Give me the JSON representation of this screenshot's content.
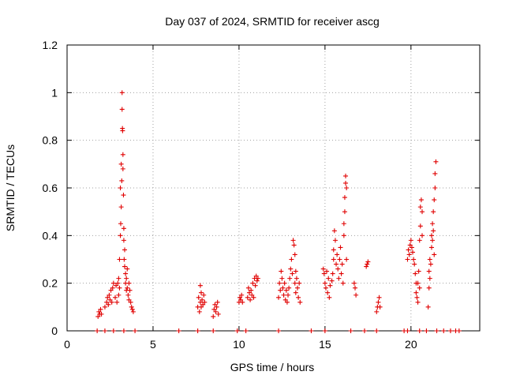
{
  "chart_data": {
    "type": "scatter",
    "title": "Day 037 of 2024, SRMTID for receiver ascg",
    "xlabel": "GPS time / hours",
    "ylabel": "SRMTID / TECUs",
    "xlim": [
      0,
      24
    ],
    "ylim": [
      0,
      1.2
    ],
    "xticks": [
      0,
      5,
      10,
      15,
      20
    ],
    "xtick_labels": [
      "0",
      "5",
      "10",
      "15",
      "20"
    ],
    "yticks": [
      0,
      0.2,
      0.4,
      0.6,
      0.8,
      1.0,
      1.2
    ],
    "ytick_labels": [
      "0",
      "0.2",
      "0.4",
      "0.6",
      "0.8",
      "1",
      "1.2"
    ],
    "grid": true,
    "marker": "+",
    "color": "#e00000",
    "series": [
      {
        "name": "SRMTID",
        "points": [
          [
            1.8,
            0.06
          ],
          [
            1.85,
            0.08
          ],
          [
            1.9,
            0.07
          ],
          [
            1.95,
            0.09
          ],
          [
            2.0,
            0.07
          ],
          [
            2.2,
            0.1
          ],
          [
            2.3,
            0.12
          ],
          [
            2.35,
            0.14
          ],
          [
            2.4,
            0.11
          ],
          [
            2.45,
            0.15
          ],
          [
            2.5,
            0.13
          ],
          [
            2.55,
            0.17
          ],
          [
            2.6,
            0.12
          ],
          [
            2.65,
            0.18
          ],
          [
            2.7,
            0.2
          ],
          [
            2.8,
            0.14
          ],
          [
            2.85,
            0.19
          ],
          [
            2.9,
            0.12
          ],
          [
            2.95,
            0.2
          ],
          [
            3.0,
            0.15
          ],
          [
            3.0,
            0.22
          ],
          [
            3.05,
            0.3
          ],
          [
            3.05,
            0.18
          ],
          [
            3.1,
            0.4
          ],
          [
            3.1,
            0.6
          ],
          [
            3.12,
            0.45
          ],
          [
            3.15,
            0.52
          ],
          [
            3.15,
            0.7
          ],
          [
            3.18,
            0.63
          ],
          [
            3.2,
            0.93
          ],
          [
            3.2,
            1.0
          ],
          [
            3.22,
            0.85
          ],
          [
            3.23,
            0.84
          ],
          [
            3.25,
            0.74
          ],
          [
            3.25,
            0.68
          ],
          [
            3.28,
            0.57
          ],
          [
            3.3,
            0.43
          ],
          [
            3.3,
            0.38
          ],
          [
            3.32,
            0.3
          ],
          [
            3.35,
            0.34
          ],
          [
            3.35,
            0.27
          ],
          [
            3.4,
            0.24
          ],
          [
            3.4,
            0.2
          ],
          [
            3.45,
            0.22
          ],
          [
            3.45,
            0.17
          ],
          [
            3.5,
            0.26
          ],
          [
            3.5,
            0.18
          ],
          [
            3.55,
            0.15
          ],
          [
            3.6,
            0.2
          ],
          [
            3.6,
            0.13
          ],
          [
            3.65,
            0.17
          ],
          [
            3.7,
            0.12
          ],
          [
            3.75,
            0.1
          ],
          [
            3.8,
            0.09
          ],
          [
            3.85,
            0.08
          ],
          [
            7.6,
            0.1
          ],
          [
            7.65,
            0.14
          ],
          [
            7.7,
            0.08
          ],
          [
            7.75,
            0.19
          ],
          [
            7.75,
            0.12
          ],
          [
            7.8,
            0.16
          ],
          [
            7.8,
            0.1
          ],
          [
            7.85,
            0.13
          ],
          [
            7.9,
            0.11
          ],
          [
            7.95,
            0.15
          ],
          [
            8.0,
            0.12
          ],
          [
            8.5,
            0.06
          ],
          [
            8.55,
            0.09
          ],
          [
            8.6,
            0.11
          ],
          [
            8.65,
            0.08
          ],
          [
            8.7,
            0.1
          ],
          [
            8.75,
            0.12
          ],
          [
            8.8,
            0.07
          ],
          [
            10.0,
            0.12
          ],
          [
            10.05,
            0.14
          ],
          [
            10.1,
            0.13
          ],
          [
            10.15,
            0.15
          ],
          [
            10.2,
            0.12
          ],
          [
            10.5,
            0.14
          ],
          [
            10.55,
            0.18
          ],
          [
            10.6,
            0.16
          ],
          [
            10.65,
            0.13
          ],
          [
            10.7,
            0.17
          ],
          [
            10.75,
            0.15
          ],
          [
            10.8,
            0.2
          ],
          [
            10.85,
            0.14
          ],
          [
            10.9,
            0.22
          ],
          [
            10.95,
            0.19
          ],
          [
            11.0,
            0.23
          ],
          [
            11.05,
            0.21
          ],
          [
            11.1,
            0.22
          ],
          [
            12.3,
            0.14
          ],
          [
            12.35,
            0.2
          ],
          [
            12.4,
            0.17
          ],
          [
            12.45,
            0.25
          ],
          [
            12.5,
            0.22
          ],
          [
            12.55,
            0.18
          ],
          [
            12.6,
            0.15
          ],
          [
            12.65,
            0.2
          ],
          [
            12.7,
            0.13
          ],
          [
            12.75,
            0.17
          ],
          [
            12.8,
            0.12
          ],
          [
            12.85,
            0.15
          ],
          [
            12.9,
            0.18
          ],
          [
            12.95,
            0.22
          ],
          [
            13.0,
            0.26
          ],
          [
            13.05,
            0.3
          ],
          [
            13.1,
            0.24
          ],
          [
            13.15,
            0.38
          ],
          [
            13.2,
            0.36
          ],
          [
            13.25,
            0.32
          ],
          [
            13.25,
            0.2
          ],
          [
            13.3,
            0.25
          ],
          [
            13.3,
            0.16
          ],
          [
            13.35,
            0.22
          ],
          [
            13.4,
            0.18
          ],
          [
            13.45,
            0.14
          ],
          [
            13.5,
            0.2
          ],
          [
            13.55,
            0.12
          ],
          [
            14.9,
            0.26
          ],
          [
            14.95,
            0.24
          ],
          [
            15.0,
            0.2
          ],
          [
            15.05,
            0.18
          ],
          [
            15.1,
            0.25
          ],
          [
            15.15,
            0.16
          ],
          [
            15.2,
            0.22
          ],
          [
            15.25,
            0.14
          ],
          [
            15.3,
            0.19
          ],
          [
            15.4,
            0.21
          ],
          [
            15.45,
            0.24
          ],
          [
            15.5,
            0.34
          ],
          [
            15.5,
            0.3
          ],
          [
            15.55,
            0.42
          ],
          [
            15.6,
            0.38
          ],
          [
            15.65,
            0.28
          ],
          [
            15.7,
            0.32
          ],
          [
            15.75,
            0.26
          ],
          [
            15.8,
            0.22
          ],
          [
            15.85,
            0.3
          ],
          [
            15.9,
            0.35
          ],
          [
            15.95,
            0.24
          ],
          [
            16.0,
            0.28
          ],
          [
            16.05,
            0.2
          ],
          [
            16.1,
            0.45
          ],
          [
            16.1,
            0.4
          ],
          [
            16.15,
            0.5
          ],
          [
            16.15,
            0.56
          ],
          [
            16.2,
            0.62
          ],
          [
            16.2,
            0.65
          ],
          [
            16.25,
            0.6
          ],
          [
            16.25,
            0.3
          ],
          [
            16.7,
            0.2
          ],
          [
            16.75,
            0.18
          ],
          [
            16.8,
            0.15
          ],
          [
            17.4,
            0.27
          ],
          [
            17.45,
            0.28
          ],
          [
            17.5,
            0.29
          ],
          [
            18.0,
            0.08
          ],
          [
            18.05,
            0.1
          ],
          [
            18.1,
            0.12
          ],
          [
            18.15,
            0.14
          ],
          [
            18.2,
            0.1
          ],
          [
            19.8,
            0.3
          ],
          [
            19.85,
            0.34
          ],
          [
            19.9,
            0.32
          ],
          [
            19.95,
            0.36
          ],
          [
            20.0,
            0.38
          ],
          [
            20.05,
            0.35
          ],
          [
            20.1,
            0.33
          ],
          [
            20.15,
            0.3
          ],
          [
            20.2,
            0.28
          ],
          [
            20.25,
            0.24
          ],
          [
            20.3,
            0.2
          ],
          [
            20.3,
            0.16
          ],
          [
            20.35,
            0.14
          ],
          [
            20.4,
            0.2
          ],
          [
            20.4,
            0.12
          ],
          [
            20.45,
            0.25
          ],
          [
            20.5,
            0.18
          ],
          [
            20.5,
            0.38
          ],
          [
            20.55,
            0.44
          ],
          [
            20.55,
            0.52
          ],
          [
            20.6,
            0.55
          ],
          [
            20.65,
            0.5
          ],
          [
            20.65,
            0.4
          ],
          [
            21.0,
            0.1
          ],
          [
            21.05,
            0.18
          ],
          [
            21.05,
            0.25
          ],
          [
            21.1,
            0.22
          ],
          [
            21.1,
            0.3
          ],
          [
            21.15,
            0.28
          ],
          [
            21.2,
            0.35
          ],
          [
            21.2,
            0.4
          ],
          [
            21.25,
            0.45
          ],
          [
            21.25,
            0.38
          ],
          [
            21.3,
            0.42
          ],
          [
            21.3,
            0.5
          ],
          [
            21.35,
            0.32
          ],
          [
            21.35,
            0.55
          ],
          [
            21.4,
            0.6
          ],
          [
            21.4,
            0.66
          ],
          [
            21.45,
            0.71
          ]
        ],
        "zero_points": [
          1.75,
          2.2,
          2.7,
          3.3,
          3.95,
          6.5,
          7.6,
          8.5,
          9.9,
          10.4,
          12.3,
          14.2,
          15.0,
          16.5,
          17.3,
          18.0,
          19.6,
          19.8,
          20.5,
          20.9,
          21.5,
          21.9,
          22.3,
          22.6,
          22.8
        ]
      }
    ]
  }
}
